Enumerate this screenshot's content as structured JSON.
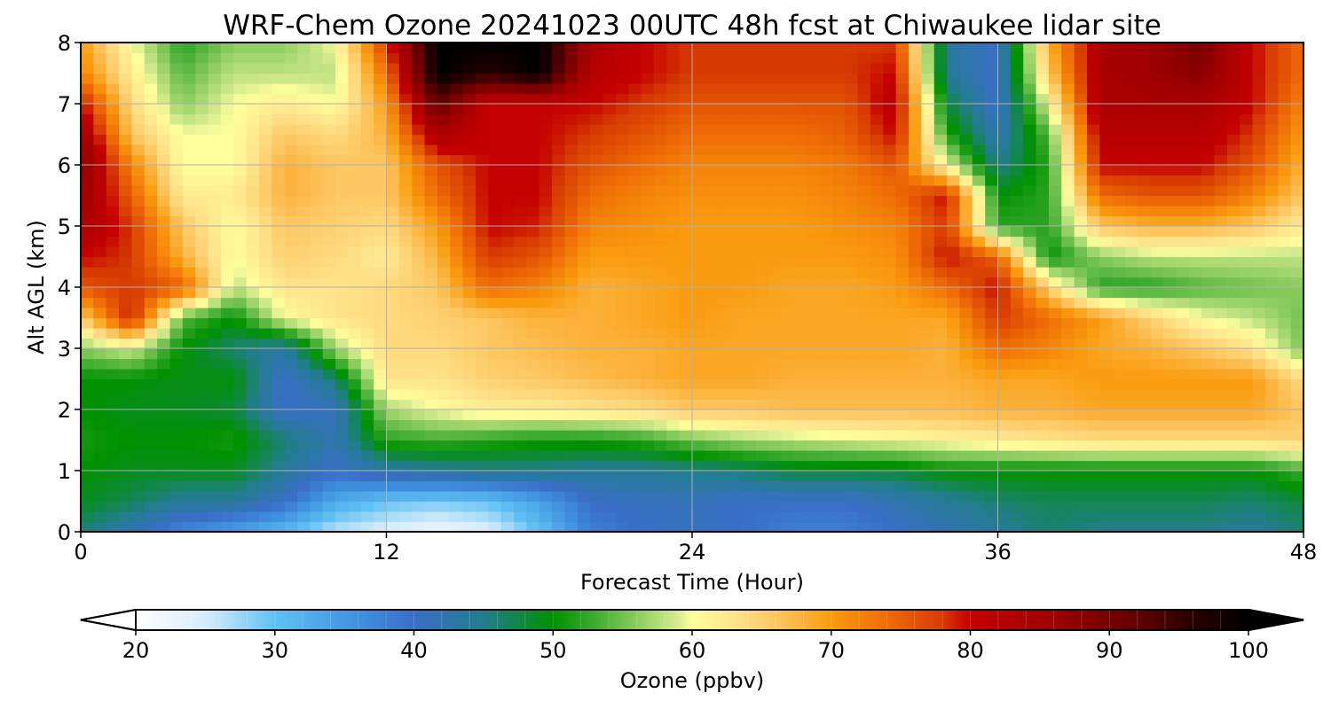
{
  "chart_data": {
    "type": "heatmap",
    "title": "WRF-Chem Ozone  20241023 00UTC 48h fcst at Chiwaukee lidar site",
    "xlabel": "Forecast Time (Hour)",
    "ylabel": "Alt AGL (km)",
    "xlim": [
      0,
      48
    ],
    "ylim": [
      0,
      8
    ],
    "x_ticks": [
      0,
      12,
      24,
      36,
      48
    ],
    "y_ticks": [
      0,
      1,
      2,
      3,
      4,
      5,
      6,
      7,
      8
    ],
    "grid": true,
    "x": [
      0,
      2,
      4,
      6,
      8,
      10,
      12,
      14,
      16,
      18,
      20,
      22,
      24,
      26,
      28,
      30,
      32,
      34,
      36,
      38,
      40,
      42,
      44,
      46,
      48
    ],
    "y": [
      0,
      0.5,
      1,
      1.5,
      2,
      2.5,
      3,
      3.5,
      4,
      4.5,
      5,
      5.5,
      6,
      6.5,
      7,
      7.5,
      8
    ],
    "z": [
      [
        46,
        42,
        37,
        34,
        31,
        26,
        24,
        22,
        24,
        30,
        38,
        40,
        41,
        40,
        38,
        38,
        40,
        42,
        44,
        46,
        45,
        45,
        45,
        44,
        46
      ],
      [
        49,
        47,
        44,
        44,
        40,
        33,
        30,
        29,
        30,
        34,
        40,
        41,
        41,
        40,
        40,
        40,
        42,
        44,
        46,
        47,
        47,
        47,
        47,
        46,
        48
      ],
      [
        50,
        49,
        49,
        49,
        44,
        40,
        43,
        44,
        45,
        45,
        44,
        44,
        45,
        46,
        48,
        48,
        48,
        50,
        50,
        50,
        50,
        50,
        50,
        50,
        53
      ],
      [
        51,
        50,
        50,
        51,
        46,
        42,
        52,
        53,
        52,
        51,
        51,
        52,
        55,
        57,
        58,
        59,
        60,
        61,
        62,
        63,
        64,
        64,
        64,
        64,
        65
      ],
      [
        50,
        49,
        49,
        48,
        40,
        41,
        57,
        60,
        62,
        62,
        63,
        64,
        66,
        66,
        67,
        67,
        67,
        67,
        68,
        68,
        69,
        69,
        69,
        69,
        66
      ],
      [
        50,
        50,
        49,
        50,
        40,
        46,
        63,
        63,
        65,
        66,
        67,
        68,
        69,
        69,
        68,
        68,
        68,
        68,
        69,
        69,
        70,
        70,
        70,
        70,
        64
      ],
      [
        56,
        59,
        50,
        46,
        43,
        57,
        64,
        64,
        66,
        67,
        68,
        68,
        69,
        69,
        69,
        69,
        69,
        68,
        74,
        72,
        69,
        68,
        66,
        63,
        55
      ],
      [
        65,
        80,
        54,
        50,
        60,
        63,
        64,
        65,
        66,
        68,
        68,
        69,
        70,
        69,
        69,
        69,
        69,
        69,
        78,
        74,
        70,
        65,
        60,
        58,
        55
      ],
      [
        76,
        78,
        75,
        58,
        63,
        63,
        64,
        66,
        74,
        72,
        68,
        69,
        70,
        70,
        69,
        69,
        70,
        74,
        80,
        65,
        52,
        52,
        54,
        55,
        56
      ],
      [
        80,
        78,
        68,
        60,
        65,
        64,
        62,
        68,
        78,
        76,
        70,
        70,
        70,
        70,
        70,
        70,
        71,
        80,
        75,
        50,
        56,
        58,
        58,
        58,
        58
      ],
      [
        84,
        78,
        66,
        60,
        66,
        65,
        64,
        70,
        80,
        79,
        72,
        71,
        70,
        70,
        70,
        71,
        72,
        78,
        52,
        52,
        66,
        68,
        68,
        66,
        62
      ],
      [
        86,
        75,
        62,
        62,
        68,
        66,
        66,
        74,
        80,
        80,
        74,
        72,
        71,
        71,
        71,
        72,
        74,
        80,
        50,
        52,
        74,
        76,
        76,
        72,
        66
      ],
      [
        88,
        72,
        60,
        60,
        68,
        66,
        66,
        76,
        80,
        80,
        76,
        74,
        72,
        72,
        72,
        73,
        76,
        60,
        45,
        52,
        80,
        80,
        80,
        76,
        68
      ],
      [
        86,
        66,
        60,
        60,
        66,
        64,
        68,
        84,
        80,
        80,
        78,
        76,
        74,
        74,
        74,
        75,
        80,
        52,
        42,
        54,
        82,
        82,
        82,
        78,
        70
      ],
      [
        80,
        64,
        56,
        60,
        62,
        60,
        70,
        92,
        80,
        80,
        80,
        78,
        76,
        76,
        76,
        76,
        82,
        48,
        40,
        60,
        84,
        84,
        84,
        80,
        72
      ],
      [
        72,
        62,
        54,
        58,
        58,
        58,
        74,
        100,
        96,
        100,
        82,
        80,
        78,
        78,
        78,
        78,
        80,
        44,
        40,
        66,
        84,
        86,
        88,
        80,
        74
      ],
      [
        70,
        60,
        52,
        56,
        56,
        60,
        78,
        100,
        100,
        100,
        84,
        80,
        78,
        78,
        78,
        78,
        78,
        44,
        40,
        68,
        84,
        86,
        90,
        80,
        74
      ]
    ],
    "colorbar": {
      "label": "Ozone  (ppbv)",
      "ticks": [
        20,
        30,
        40,
        50,
        60,
        70,
        80,
        90,
        100
      ],
      "vmin": 20,
      "vmax": 100,
      "extend": "both",
      "placement": "bottom",
      "stops": [
        [
          20,
          "#ffffff"
        ],
        [
          25,
          "#d6ecfb"
        ],
        [
          30,
          "#60c1f4"
        ],
        [
          36,
          "#3f91df"
        ],
        [
          40,
          "#3a6ec8"
        ],
        [
          45,
          "#227d8d"
        ],
        [
          50,
          "#009100"
        ],
        [
          53,
          "#3eab31"
        ],
        [
          56,
          "#8bcc5e"
        ],
        [
          59,
          "#d7ec8f"
        ],
        [
          60,
          "#fefe9c"
        ],
        [
          63,
          "#fee38c"
        ],
        [
          66,
          "#fdc763"
        ],
        [
          70,
          "#fa9b0f"
        ],
        [
          74,
          "#ef6c06"
        ],
        [
          78,
          "#d73b02"
        ],
        [
          80,
          "#c40000"
        ],
        [
          86,
          "#9d0000"
        ],
        [
          92,
          "#620000"
        ],
        [
          96,
          "#2a0000"
        ],
        [
          100,
          "#000000"
        ]
      ],
      "under_color": "#ffffff",
      "over_color": "#000000"
    }
  }
}
